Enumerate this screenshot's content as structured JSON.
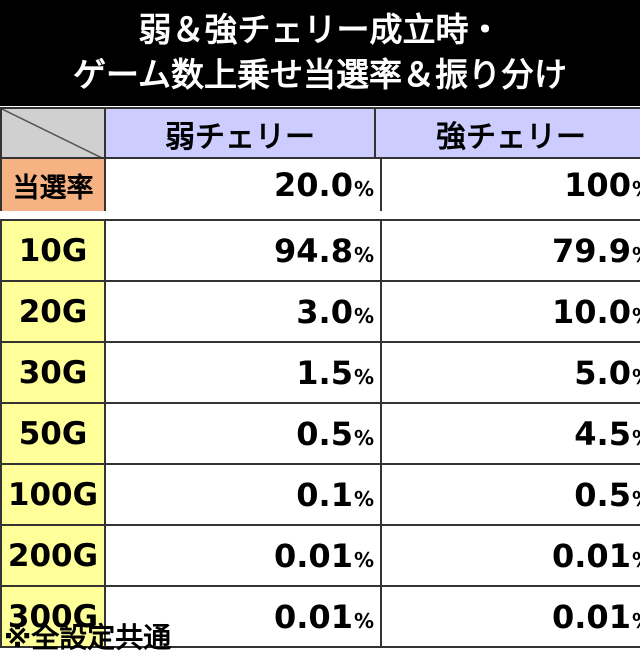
{
  "title": {
    "line1": "弱＆強チェリー成立時・",
    "line2": "ゲーム数上乗せ当選率＆振り分け"
  },
  "columns": [
    "弱チェリー",
    "強チェリー"
  ],
  "win_rate": {
    "label": "当選率",
    "weak": "20.0",
    "strong": "100"
  },
  "percent_sign": "%",
  "distribution": [
    {
      "label": "10G",
      "weak": "94.8",
      "strong": "79.9"
    },
    {
      "label": "20G",
      "weak": "3.0",
      "strong": "10.0"
    },
    {
      "label": "30G",
      "weak": "1.5",
      "strong": "5.0"
    },
    {
      "label": "50G",
      "weak": "0.5",
      "strong": "4.5"
    },
    {
      "label": "100G",
      "weak": "0.1",
      "strong": "0.5"
    },
    {
      "label": "200G",
      "weak": "0.01",
      "strong": "0.01"
    },
    {
      "label": "300G",
      "weak": "0.01",
      "strong": "0.01"
    }
  ],
  "footnote": "※全設定共通",
  "colors": {
    "title_bg": "#000000",
    "header_bg": "#ccccff",
    "rate_label_bg": "#f7b283",
    "row_label_bg": "#ffff99",
    "corner_bg": "#d0d0d0"
  }
}
